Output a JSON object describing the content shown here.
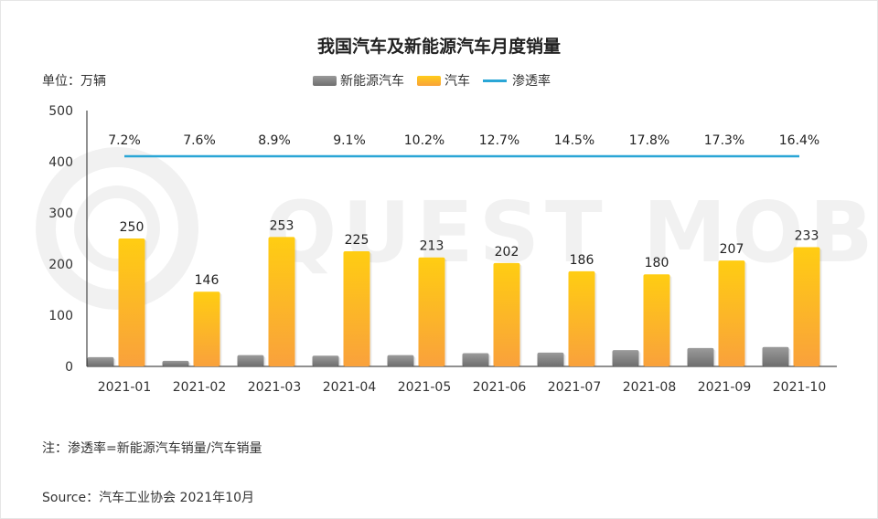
{
  "chart_data": {
    "type": "bar",
    "title": "我国汽车及新能源汽车月度销量",
    "unit_label": "单位：万辆",
    "categories": [
      "2021-01",
      "2021-02",
      "2021-03",
      "2021-04",
      "2021-05",
      "2021-06",
      "2021-07",
      "2021-08",
      "2021-09",
      "2021-10"
    ],
    "series": [
      {
        "name": "新能源汽车",
        "type": "bar",
        "color": "#8a8a8a",
        "values": [
          18,
          11,
          22,
          21,
          22,
          26,
          27,
          32,
          36,
          38
        ]
      },
      {
        "name": "汽车",
        "type": "bar",
        "color": "#f9b71d",
        "values": [
          250,
          146,
          253,
          225,
          213,
          202,
          186,
          180,
          207,
          233
        ]
      },
      {
        "name": "渗透率",
        "type": "line",
        "color": "#2aa6d6",
        "labels": [
          "7.2%",
          "7.6%",
          "8.9%",
          "9.1%",
          "10.2%",
          "12.7%",
          "14.5%",
          "17.8%",
          "17.3%",
          "16.4%"
        ]
      }
    ],
    "ylim": [
      0,
      500
    ],
    "yticks": [
      0,
      100,
      200,
      300,
      400,
      500
    ],
    "legend_position": "top-center",
    "grid": false,
    "note": "注：渗透率=新能源汽车销量/汽车销量",
    "source": "Source：汽车工业协会 2021年10月"
  }
}
